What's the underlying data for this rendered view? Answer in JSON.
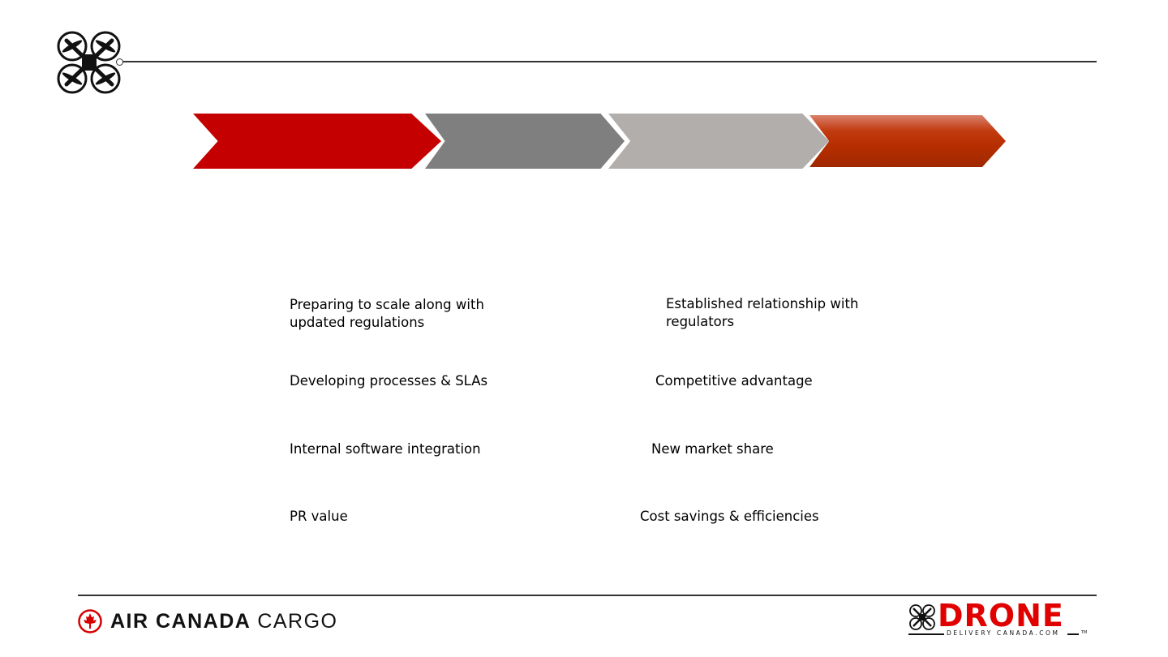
{
  "process_steps": [
    {
      "label": "",
      "color": "#c40000"
    },
    {
      "label": "",
      "color": "#7f7f7f"
    },
    {
      "label": "",
      "color": "#b1aeac"
    },
    {
      "label": "",
      "color": "#b93000"
    }
  ],
  "left_items": [
    {
      "text": "Preparing to scale along with updated regulations",
      "style": "grey"
    },
    {
      "text": "Developing processes & SLAs",
      "style": "red"
    },
    {
      "text": "Internal software integration",
      "style": "grey"
    },
    {
      "text": "PR value",
      "style": "red"
    }
  ],
  "right_items": [
    {
      "text": "Established relationship with regulators",
      "style": "red"
    },
    {
      "text": "Competitive advantage",
      "style": "grey"
    },
    {
      "text": "New market share",
      "style": "red"
    },
    {
      "text": "Cost savings & efficiencies",
      "style": "grey"
    }
  ],
  "footer": {
    "left_logo_bold": "AIR CANADA",
    "left_logo_light": "CARGO",
    "right_logo_main": "DRONE",
    "right_logo_sub": "DELIVERY CANADA.COM",
    "right_logo_tm": "TM"
  },
  "colors": {
    "brand_red": "#e00000",
    "grey": "#c3c3c3",
    "line": "#333333"
  },
  "icons": [
    "drone-icon",
    "maple-leaf-icon",
    "drone-mini-icon"
  ]
}
